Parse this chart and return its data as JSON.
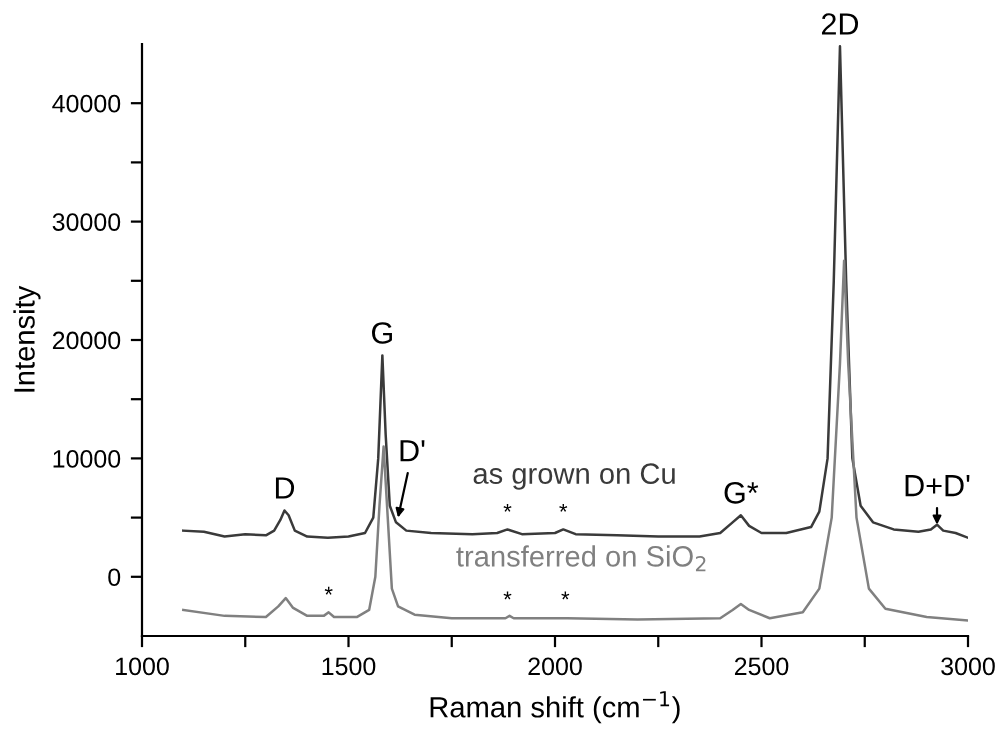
{
  "chart_data": {
    "type": "line",
    "xlabel": "Raman shift (cm$^{−1}$)",
    "ylabel": "Intensity",
    "xlim": [
      1000,
      3000
    ],
    "xticks": [
      1000,
      {
        "value": 1250,
        "label": null
      },
      1500,
      {
        "value": 1750,
        "label": null
      },
      2000,
      {
        "value": 2250,
        "label": null
      },
      2500,
      {
        "value": 2750,
        "label": null
      },
      3000
    ],
    "ylim": [
      -5000,
      45000
    ],
    "yticks": [
      0,
      {
        "value": 5000,
        "label": null
      },
      10000,
      {
        "value": 15000,
        "label": null
      },
      20000,
      {
        "value": 25000,
        "label": null
      },
      30000,
      {
        "value": 35000,
        "label": null
      },
      40000
    ],
    "grid": false,
    "legend": false,
    "marker": "none",
    "line_style": "solid",
    "series": [
      {
        "name": "as grown on Cu",
        "color": "#3a3a3a",
        "x": [
          1100,
          1150,
          1200,
          1250,
          1300,
          1320,
          1335,
          1345,
          1355,
          1370,
          1400,
          1450,
          1500,
          1540,
          1560,
          1572,
          1582,
          1590,
          1600,
          1615,
          1640,
          1700,
          1800,
          1860,
          1885,
          1920,
          2000,
          2020,
          2050,
          2150,
          2250,
          2350,
          2400,
          2430,
          2450,
          2470,
          2500,
          2560,
          2620,
          2640,
          2660,
          2675,
          2690,
          2705,
          2720,
          2740,
          2770,
          2820,
          2880,
          2910,
          2925,
          2940,
          2970,
          3000
        ],
        "values": [
          3900,
          3800,
          3400,
          3600,
          3500,
          3900,
          4800,
          5600,
          5200,
          3900,
          3400,
          3300,
          3400,
          3700,
          5000,
          10000,
          18700,
          12000,
          6000,
          4600,
          3900,
          3700,
          3600,
          3700,
          4000,
          3600,
          3700,
          4000,
          3600,
          3500,
          3400,
          3400,
          3700,
          4600,
          5200,
          4300,
          3700,
          3700,
          4200,
          5500,
          10000,
          25000,
          44800,
          25000,
          10000,
          6000,
          4600,
          4000,
          3800,
          4000,
          4400,
          3900,
          3700,
          3300
        ]
      },
      {
        "name": "transferred on SiO$_{2}$",
        "color": "#808080",
        "x": [
          1100,
          1200,
          1300,
          1330,
          1348,
          1365,
          1400,
          1440,
          1452,
          1465,
          1520,
          1550,
          1565,
          1575,
          1585,
          1595,
          1605,
          1620,
          1660,
          1750,
          1880,
          1890,
          1900,
          2030,
          2200,
          2400,
          2430,
          2450,
          2470,
          2520,
          2600,
          2640,
          2670,
          2690,
          2700,
          2710,
          2730,
          2760,
          2800,
          2900,
          3000
        ],
        "values": [
          -2800,
          -3300,
          -3400,
          -2500,
          -1800,
          -2600,
          -3300,
          -3300,
          -3000,
          -3400,
          -3400,
          -2800,
          0,
          6000,
          11000,
          5000,
          -1000,
          -2500,
          -3200,
          -3500,
          -3500,
          -3300,
          -3500,
          -3500,
          -3600,
          -3500,
          -2800,
          -2300,
          -2800,
          -3500,
          -3000,
          -1000,
          5000,
          18000,
          26700,
          18000,
          5000,
          -1000,
          -2700,
          -3400,
          -3700
        ]
      }
    ],
    "annotations": [
      {
        "text": "D",
        "x": 1345,
        "y": 5600
      },
      {
        "text": "G",
        "x": 1582,
        "y": 18700
      },
      {
        "text": "D'",
        "x": 1620,
        "y": 5000
      },
      {
        "text": "G*",
        "x": 2450,
        "y": 5200
      },
      {
        "text": "2D",
        "x": 2690,
        "y": 44800
      },
      {
        "text": "D+D'",
        "x": 2925,
        "y": 4400
      },
      {
        "text": "*",
        "x": 1885,
        "y": 4000
      },
      {
        "text": "*",
        "x": 2020,
        "y": 4000
      },
      {
        "text": "*",
        "x": 1452,
        "y": -3000
      },
      {
        "text": "*",
        "x": 1885,
        "y": -3400
      },
      {
        "text": "*",
        "x": 2025,
        "y": -3400
      }
    ]
  }
}
